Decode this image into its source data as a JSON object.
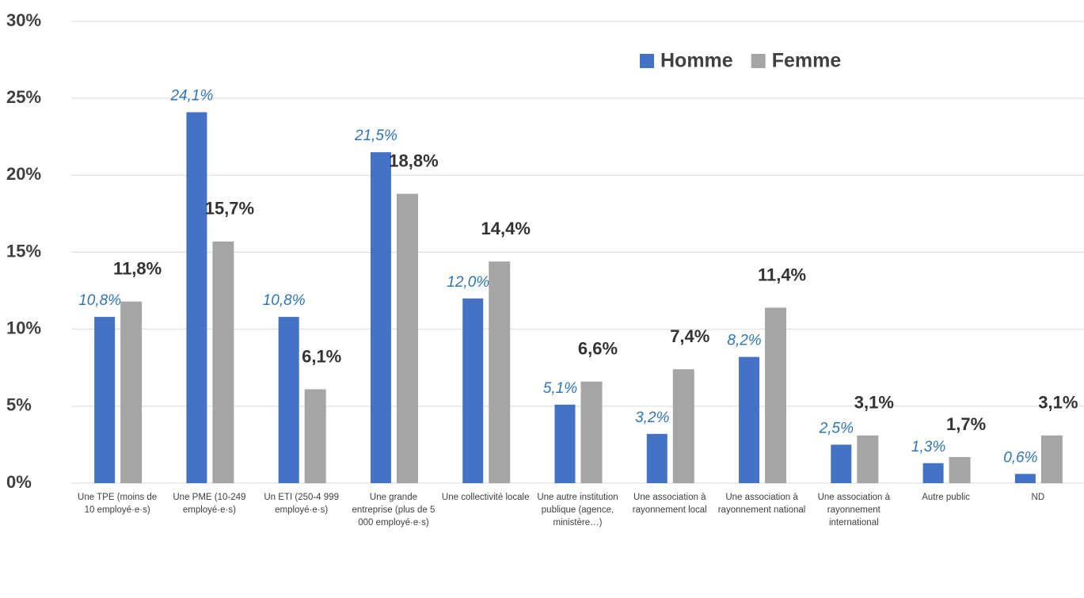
{
  "chart_data": {
    "type": "bar",
    "categories": [
      "Une TPE (moins de 10 employé·e·s)",
      "Une PME (10-249 employé·e·s)",
      "Un ETI (250-4 999 employé·e·s)",
      "Une grande entreprise (plus de 5 000 employé·e·s)",
      "Une collectivité locale",
      "Une autre institution publique (agence, ministère…)",
      "Une association à rayonnement local",
      "Une association à rayonnement national",
      "Une association à rayonnement international",
      "Autre public",
      "ND"
    ],
    "series": [
      {
        "name": "Homme",
        "color": "#4472c4",
        "values": [
          10.8,
          24.1,
          10.8,
          21.5,
          12.0,
          5.1,
          3.2,
          8.2,
          2.5,
          1.3,
          0.6
        ],
        "value_labels": [
          "10,8%",
          "24,1%",
          "10,8%",
          "21,5%",
          "12,0%",
          "5,1%",
          "3,2%",
          "8,2%",
          "2,5%",
          "1,3%",
          "0,6%"
        ]
      },
      {
        "name": "Femme",
        "color": "#a5a5a5",
        "values": [
          11.8,
          15.7,
          6.1,
          18.8,
          14.4,
          6.6,
          7.4,
          11.4,
          3.1,
          1.7,
          3.1
        ],
        "value_labels": [
          "11,8%",
          "15,7%",
          "6,1%",
          "18,8%",
          "14,4%",
          "6,6%",
          "7,4%",
          "11,4%",
          "3,1%",
          "1,7%",
          "3,1%"
        ]
      }
    ],
    "ylim": [
      0,
      30
    ],
    "yticks": [
      {
        "value": 0,
        "label": "0%"
      },
      {
        "value": 5,
        "label": "5%"
      },
      {
        "value": 10,
        "label": "10%"
      },
      {
        "value": 15,
        "label": "15%"
      },
      {
        "value": 20,
        "label": "20%"
      },
      {
        "value": 25,
        "label": "25%"
      },
      {
        "value": 30,
        "label": "30%"
      }
    ],
    "grid": true,
    "legend": "top-right"
  }
}
